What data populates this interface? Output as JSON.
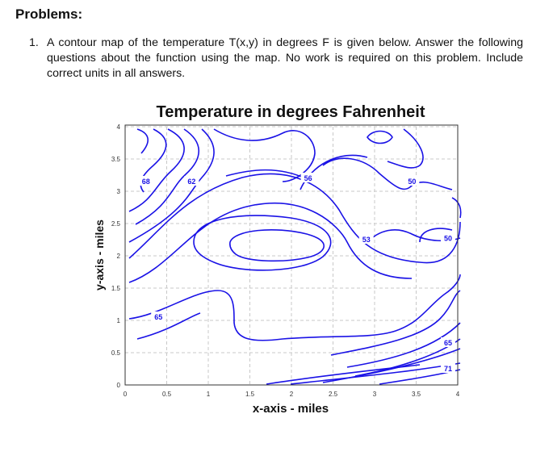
{
  "document": {
    "heading": "Problems:",
    "problem_number": "1.",
    "problem_text": "A contour map of the temperature T(x,y) in degrees F is given below. Answer the following questions about the function using the map. No work is required on this problem. Include correct units in all answers."
  },
  "chart_data": {
    "type": "contour",
    "title": "Temperature in degrees Fahrenheit",
    "xlabel": "x-axis - miles",
    "ylabel": "y-axis - miles",
    "xlim": [
      0,
      4
    ],
    "ylim": [
      0,
      4
    ],
    "xticks": [
      "0",
      "0.5",
      "1",
      "1.5",
      "2",
      "2.5",
      "3",
      "3.5",
      "4"
    ],
    "yticks": [
      "0",
      "0.5",
      "1",
      "1.5",
      "2",
      "2.5",
      "3",
      "3.5",
      "4"
    ],
    "grid": true,
    "line_color": "#1a12e6",
    "contour_labels": [
      {
        "text": "68",
        "x": 0.25,
        "y": 3.15
      },
      {
        "text": "62",
        "x": 0.8,
        "y": 3.15
      },
      {
        "text": "56",
        "x": 2.2,
        "y": 3.2
      },
      {
        "text": "50",
        "x": 3.45,
        "y": 3.15
      },
      {
        "text": "53",
        "x": 2.9,
        "y": 2.25
      },
      {
        "text": "50",
        "x": 4.8,
        "y": 2.27
      },
      {
        "text": "65",
        "x": 0.4,
        "y": 1.05
      },
      {
        "text": "65",
        "x": 4.3,
        "y": 0.65
      },
      {
        "text": "71",
        "x": 4.35,
        "y": 0.25
      }
    ]
  }
}
